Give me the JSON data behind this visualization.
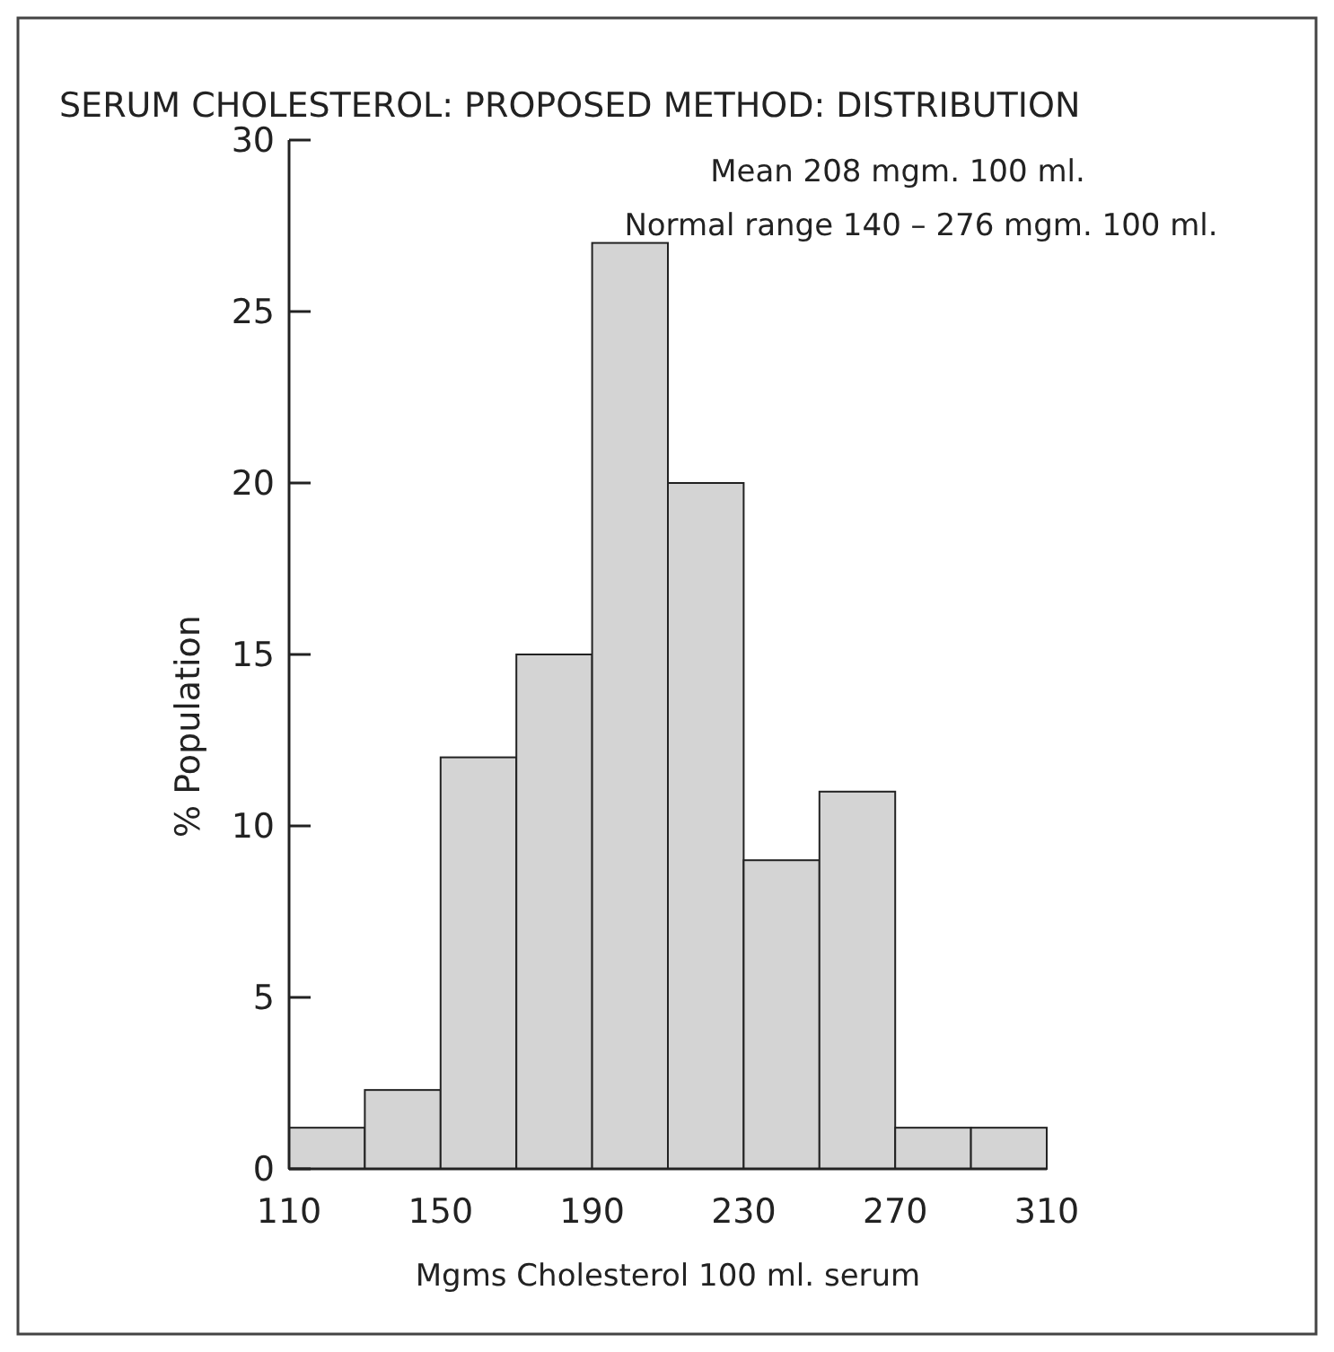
{
  "chart_data": {
    "type": "histogram",
    "title": "SERUM CHOLESTEROL: PROPOSED METHOD: DISTRIBUTION",
    "annotations": [
      "Mean 208 mgm. 100 ml.",
      "Normal range 140 – 276 mgm. 100 ml."
    ],
    "xlabel": "Mgms Cholesterol 100 ml. serum",
    "ylabel": "% Population",
    "bins": [
      110,
      130,
      150,
      170,
      190,
      210,
      230,
      250,
      270,
      290,
      310
    ],
    "values": [
      1.2,
      2.3,
      12,
      15,
      27,
      20,
      9,
      11,
      1.2,
      1.2
    ],
    "color": "#d4d4d4",
    "xlim": [
      110,
      310
    ],
    "xticks": [
      110,
      150,
      190,
      230,
      270,
      310
    ],
    "ylim": [
      0,
      30
    ],
    "yticks": [
      0,
      5,
      10,
      15,
      20,
      25,
      30
    ],
    "grid": false
  }
}
